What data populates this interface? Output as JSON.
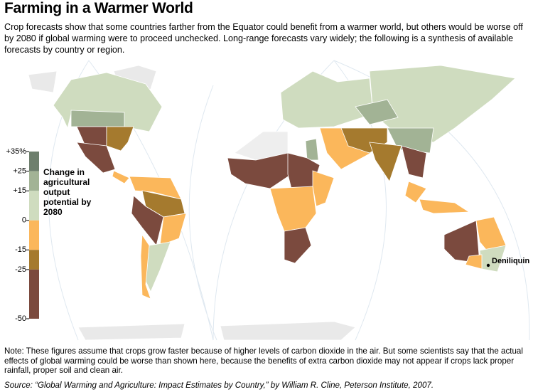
{
  "title": "Farming in a Warmer World",
  "intro": "Crop forecasts show that some countries farther from the Equator could benefit from a warmer world, but others would be worse off by 2080 if global warming were to proceed unchecked. Long-range forecasts vary widely; the following is a synthesis of available forecasts by country or region.",
  "legend": {
    "title": "Change in agricultural output potential by 2080",
    "lim": [
      -50,
      35
    ],
    "ticks": [
      {
        "value": 35,
        "label": "+35%"
      },
      {
        "value": 25,
        "label": "+25"
      },
      {
        "value": 15,
        "label": "+15"
      },
      0,
      -15,
      -25,
      -50
    ],
    "colors": [
      "#6e7f6d",
      "#a2b395",
      "#cfdcbf",
      "#fbb75b",
      "#a57a2e",
      "#7b4a3e"
    ]
  },
  "annotation": "Deniliquin",
  "note": "Note: These figures assume that crops grow faster because of higher levels of carbon dioxide in the air. But some scientists say that the actual effects of global warming could be worse than shown here, because the benefits of extra carbon dioxide may not appear if crops lack proper rainfall, proper soil and clean air.",
  "source": "Source: “Global Warming and Agriculture: Impact Estimates by Country,” by William R. Cline, Peterson Institute, 2007."
}
